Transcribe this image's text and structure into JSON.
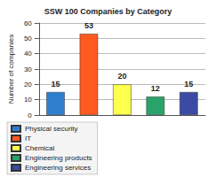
{
  "chart_data": {
    "type": "bar",
    "title": "SSW 100 Companies by Category",
    "ylabel": "Number of companies",
    "categories": [
      "Physical security",
      "IT",
      "Chemical",
      "Engineering products",
      "Engineering services"
    ],
    "values": [
      15,
      53,
      20,
      12,
      15
    ],
    "colors": [
      "#2f7fcf",
      "#ff5a1f",
      "#ffff4d",
      "#2aa36a",
      "#3b4aa3"
    ],
    "ylim": [
      0,
      60
    ],
    "yticks": [
      0,
      10,
      20,
      30,
      40,
      50,
      60
    ],
    "grid": true,
    "legend": "bottom",
    "data_labels": true,
    "tick_labels": "y"
  }
}
